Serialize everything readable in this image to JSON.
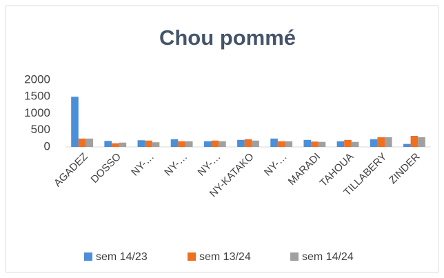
{
  "chart_data": {
    "type": "bar",
    "title": "Chou pommé",
    "categories": [
      "AGADEZ",
      "DOSSO",
      "NY-…",
      "NY-…",
      "NY-…",
      "NY-KATAKO",
      "NY-…",
      "MARADI",
      "TAHOUA",
      "TILLABERY",
      "ZINDER"
    ],
    "series": [
      {
        "name": "sem 14/23",
        "color": "#4a8fd8",
        "values": [
          1500,
          180,
          200,
          230,
          170,
          210,
          250,
          210,
          170,
          230,
          90
        ]
      },
      {
        "name": "sem 13/24",
        "color": "#f07020",
        "values": [
          250,
          110,
          190,
          170,
          190,
          230,
          170,
          160,
          210,
          290,
          330
        ]
      },
      {
        "name": "sem 14/24",
        "color": "#a0a0a0",
        "values": [
          250,
          130,
          140,
          170,
          170,
          190,
          170,
          150,
          150,
          290,
          290
        ]
      }
    ],
    "ylim": [
      0,
      2000
    ],
    "yticks": [
      0,
      500,
      1000,
      1500,
      2000
    ],
    "grid": false,
    "legend": "bottom"
  }
}
